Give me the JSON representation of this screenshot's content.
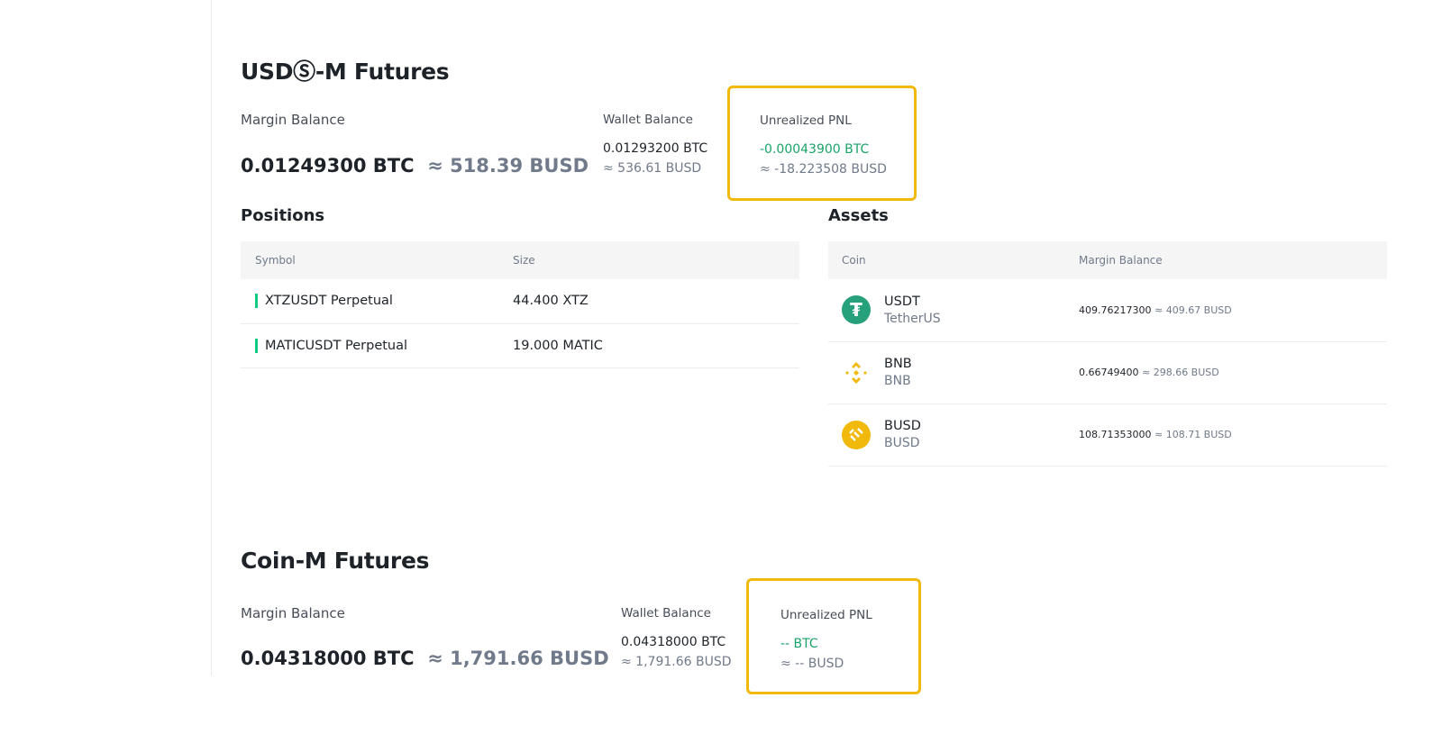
{
  "usdm": {
    "title": "USDⓈ-M Futures",
    "margin_label": "Margin Balance",
    "margin_btc": "0.01249300 BTC",
    "margin_busd": "≈ 518.39 BUSD",
    "wallet_label": "Wallet Balance",
    "wallet_btc": "0.01293200 BTC",
    "wallet_busd": "≈ 536.61 BUSD",
    "pnl_label": "Unrealized PNL",
    "pnl_btc": "-0.00043900 BTC",
    "pnl_busd": "≈ -18.223508 BUSD"
  },
  "positions": {
    "title": "Positions",
    "headers": [
      "Symbol",
      "Size"
    ],
    "rows": [
      {
        "symbol": "XTZUSDT Perpetual",
        "size": "44.400 XTZ"
      },
      {
        "symbol": "MATICUSDT Perpetual",
        "size": "19.000 MATIC"
      }
    ]
  },
  "assets": {
    "title": "Assets",
    "headers": [
      "Coin",
      "Margin Balance"
    ],
    "rows": [
      {
        "coin": "USDT",
        "name": "TetherUS",
        "amount": "409.76217300",
        "approx": "≈ 409.67 BUSD",
        "icon": "tether-icon",
        "color": "#26a17b"
      },
      {
        "coin": "BNB",
        "name": "BNB",
        "amount": "0.66749400",
        "approx": "≈ 298.66 BUSD",
        "icon": "bnb-icon",
        "color": "#f0b90b"
      },
      {
        "coin": "BUSD",
        "name": "BUSD",
        "amount": "108.71353000",
        "approx": "≈ 108.71 BUSD",
        "icon": "busd-icon",
        "color": "#f0b90b"
      }
    ]
  },
  "coinm": {
    "title": "Coin-M Futures",
    "margin_label": "Margin Balance",
    "margin_btc": "0.04318000 BTC",
    "margin_busd": "≈ 1,791.66 BUSD",
    "wallet_label": "Wallet Balance",
    "wallet_btc": "0.04318000 BTC",
    "wallet_busd": "≈ 1,791.66 BUSD",
    "pnl_label": "Unrealized PNL",
    "pnl_btc": "-- BTC",
    "pnl_busd": "≈ -- BUSD"
  },
  "colors": {
    "highlight": "#f0b90b",
    "positive": "#1aa367"
  }
}
